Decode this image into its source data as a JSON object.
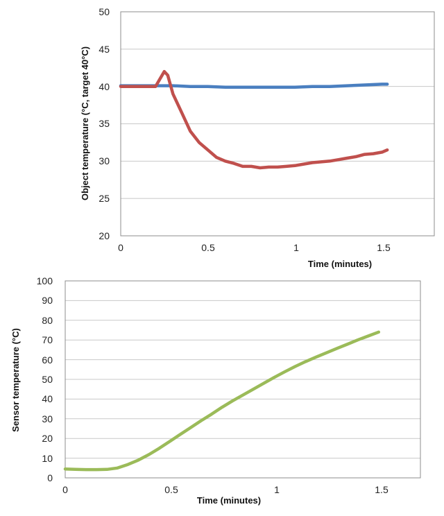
{
  "chart_data": [
    {
      "type": "line",
      "title": "",
      "xlabel": "Time (minutes)",
      "ylabel": "Object temperature (°C, target 40°C)",
      "xlim": [
        0,
        1.8
      ],
      "ylim": [
        20,
        50
      ],
      "xticks": [
        0,
        0.5,
        1,
        1.5
      ],
      "xtick_labels": [
        "0",
        "0.5",
        "1",
        "1.5"
      ],
      "yticks": [
        20,
        25,
        30,
        35,
        40,
        45,
        50
      ],
      "ytick_labels": [
        "20",
        "25",
        "30",
        "35",
        "40",
        "45",
        "50"
      ],
      "grid": true,
      "legend": "none",
      "series": [
        {
          "color": "#4a7fc0",
          "points": [
            [
              0,
              40.1
            ],
            [
              0.1,
              40.1
            ],
            [
              0.2,
              40.1
            ],
            [
              0.3,
              40.1
            ],
            [
              0.4,
              40.0
            ],
            [
              0.5,
              40.0
            ],
            [
              0.6,
              39.9
            ],
            [
              0.7,
              39.9
            ],
            [
              0.8,
              39.9
            ],
            [
              0.9,
              39.9
            ],
            [
              1.0,
              39.9
            ],
            [
              1.1,
              40.0
            ],
            [
              1.2,
              40.0
            ],
            [
              1.3,
              40.1
            ],
            [
              1.4,
              40.2
            ],
            [
              1.5,
              40.3
            ],
            [
              1.53,
              40.3
            ]
          ]
        },
        {
          "color": "#c0504d",
          "points": [
            [
              0,
              40.0
            ],
            [
              0.1,
              40.0
            ],
            [
              0.2,
              40.0
            ],
            [
              0.22,
              40.8
            ],
            [
              0.25,
              42.0
            ],
            [
              0.27,
              41.5
            ],
            [
              0.3,
              39.0
            ],
            [
              0.35,
              36.5
            ],
            [
              0.4,
              34.0
            ],
            [
              0.45,
              32.5
            ],
            [
              0.5,
              31.5
            ],
            [
              0.55,
              30.5
            ],
            [
              0.6,
              30.0
            ],
            [
              0.65,
              29.7
            ],
            [
              0.7,
              29.3
            ],
            [
              0.75,
              29.3
            ],
            [
              0.8,
              29.1
            ],
            [
              0.85,
              29.2
            ],
            [
              0.9,
              29.2
            ],
            [
              0.95,
              29.3
            ],
            [
              1.0,
              29.4
            ],
            [
              1.05,
              29.6
            ],
            [
              1.1,
              29.8
            ],
            [
              1.15,
              29.9
            ],
            [
              1.2,
              30.0
            ],
            [
              1.25,
              30.2
            ],
            [
              1.3,
              30.4
            ],
            [
              1.35,
              30.6
            ],
            [
              1.4,
              30.9
            ],
            [
              1.45,
              31.0
            ],
            [
              1.5,
              31.2
            ],
            [
              1.53,
              31.5
            ]
          ]
        }
      ]
    },
    {
      "type": "line",
      "title": "",
      "xlabel": "Time (minutes)",
      "ylabel": "Sensor temperature (°C)",
      "xlim": [
        0,
        1.7
      ],
      "ylim": [
        0,
        100
      ],
      "xticks": [
        0,
        0.5,
        1,
        1.5
      ],
      "xtick_labels": [
        "0",
        "0.5",
        "1",
        "1.5"
      ],
      "yticks": [
        0,
        10,
        20,
        30,
        40,
        50,
        60,
        70,
        80,
        90,
        100
      ],
      "ytick_labels": [
        "0",
        "10",
        "20",
        "30",
        "40",
        "50",
        "60",
        "70",
        "80",
        "90",
        "100"
      ],
      "grid": true,
      "legend": "none",
      "series": [
        {
          "color": "#9bbb59",
          "points": [
            [
              0,
              4.5
            ],
            [
              0.05,
              4.3
            ],
            [
              0.1,
              4.2
            ],
            [
              0.15,
              4.2
            ],
            [
              0.2,
              4.3
            ],
            [
              0.25,
              5.0
            ],
            [
              0.3,
              6.8
            ],
            [
              0.35,
              9.0
            ],
            [
              0.4,
              11.8
            ],
            [
              0.45,
              15.0
            ],
            [
              0.5,
              18.5
            ],
            [
              0.55,
              22.0
            ],
            [
              0.6,
              25.5
            ],
            [
              0.65,
              29.0
            ],
            [
              0.7,
              32.3
            ],
            [
              0.75,
              35.8
            ],
            [
              0.8,
              39.0
            ],
            [
              0.85,
              42.0
            ],
            [
              0.9,
              45.0
            ],
            [
              0.95,
              48.0
            ],
            [
              1.0,
              51.0
            ],
            [
              1.05,
              53.8
            ],
            [
              1.1,
              56.5
            ],
            [
              1.15,
              59.0
            ],
            [
              1.2,
              61.3
            ],
            [
              1.25,
              63.5
            ],
            [
              1.3,
              65.7
            ],
            [
              1.35,
              67.8
            ],
            [
              1.4,
              70.0
            ],
            [
              1.45,
              72.0
            ],
            [
              1.5,
              74.0
            ]
          ]
        }
      ]
    }
  ]
}
